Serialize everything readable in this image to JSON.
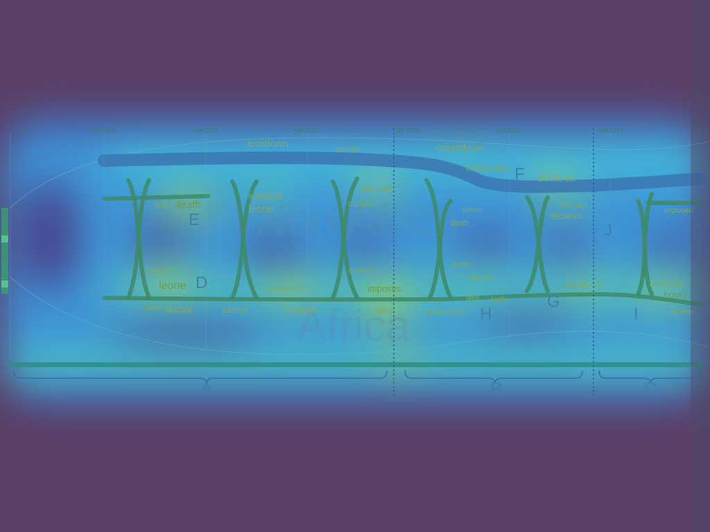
{
  "timeline": {
    "ticks": [
      "1",
      "Oct 2014",
      "Jan 2015",
      "Apr 2015",
      "Jul 2015",
      "Oct 2015",
      "Jan 2016",
      "2/20"
    ]
  },
  "regions": {
    "top_label": "Non Africa",
    "bottom_label": "Africa"
  },
  "keywords": {
    "lockdown_top": "lockdown",
    "school": "school",
    "countdown": "countdown",
    "ebola_free": "ebola-free",
    "declared_top": "declared",
    "imposes_1": "imposes",
    "curfew_1": "curfew",
    "toll": "toll",
    "death_1": "death",
    "lockdown_2": "lockdown",
    "leone_1": "leone",
    "patient_1": "patient",
    "death_2": "death",
    "officially_1": "officially",
    "declared_2": "declared",
    "exposed": "exposed",
    "sierra_1": "sierra",
    "leone_2": "leone",
    "curfew_2": "curfew",
    "death_3": "death",
    "patient_2": "patient",
    "president": "president",
    "imposes_2": "imposes",
    "officially_2": "officially",
    "eb": "eb",
    "confirmed": "confirmed",
    "hours": "hours",
    "dies": "dies",
    "doctor": "doctor",
    "sierra_2": "sierra",
    "outbreak": "outbreak",
    "spike": "spike",
    "quarantined": "quarantined",
    "died": "died",
    "north": "north",
    "confirms": "confirms"
  },
  "markers": {
    "E": "E",
    "D": "D",
    "F": "F",
    "H": "H",
    "G": "G",
    "J": "J",
    "I": "I"
  },
  "periods": {
    "A": "A",
    "B": "B",
    "C": "C"
  },
  "colors": {
    "background": "#5b3f66",
    "heat_hot": "#e8e23a",
    "heat_warm": "#7ed957",
    "heat_cool": "#3fb6d9",
    "heat_cold": "#2f5fd0"
  }
}
